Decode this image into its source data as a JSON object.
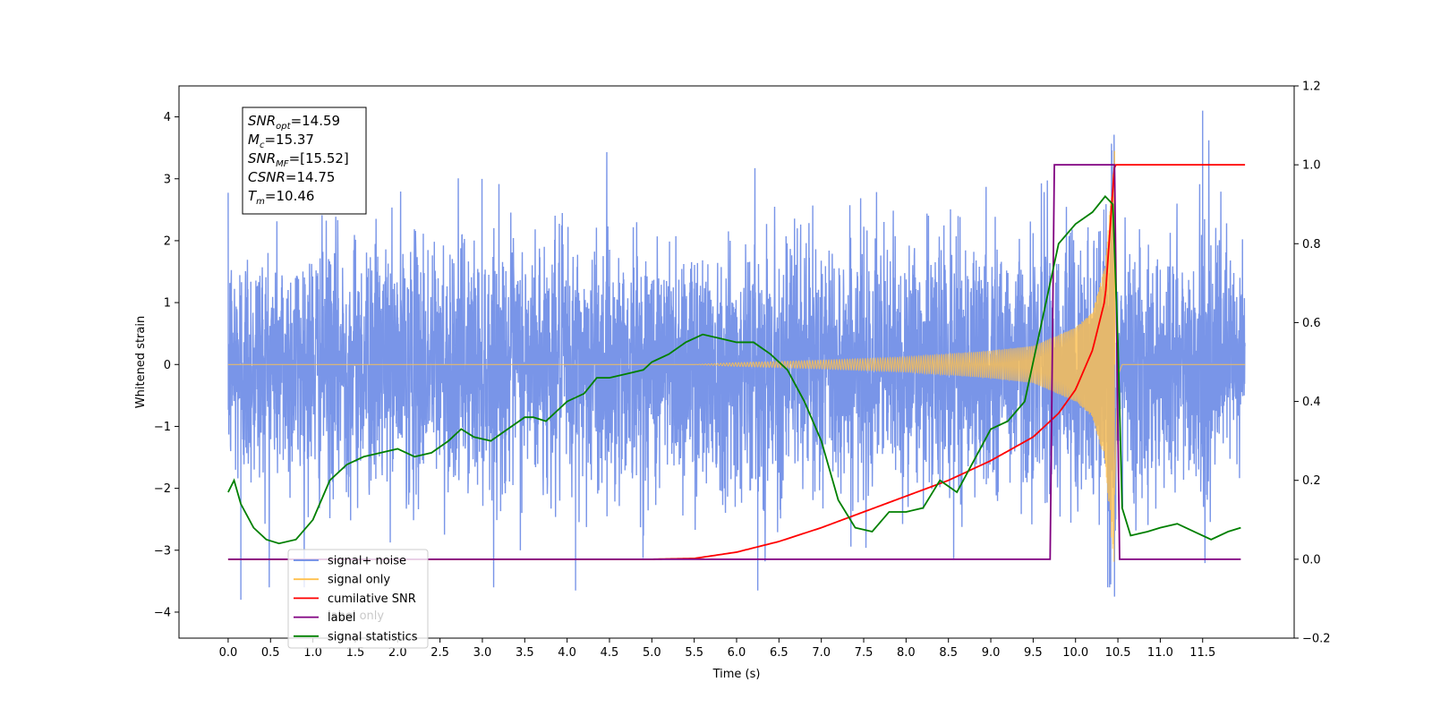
{
  "chart_data": {
    "type": "line",
    "xlabel": "Time (s)",
    "ylabel": "Whitened strain",
    "xlim": [
      -0.58,
      12.58
    ],
    "ylim": [
      -4.42,
      4.5
    ],
    "y2lim": [
      -0.2,
      1.2
    ],
    "x_ticks": [
      0.0,
      0.5,
      1.0,
      1.5,
      2.0,
      2.5,
      3.0,
      3.5,
      4.0,
      4.5,
      5.0,
      5.5,
      6.0,
      6.5,
      7.0,
      7.5,
      8.0,
      8.5,
      9.0,
      9.5,
      10.0,
      10.5,
      11.0,
      11.5
    ],
    "x_tick_labels": [
      "0.0",
      "0.5",
      "1.0",
      "1.5",
      "2.0",
      "2.5",
      "3.0",
      "3.5",
      "4.0",
      "4.5",
      "5.0",
      "5.5",
      "6.0",
      "6.5",
      "7.0",
      "7.5",
      "8.0",
      "8.5",
      "9.0",
      "9.5",
      "10.0",
      "10.5",
      "11.0",
      "11.5"
    ],
    "y_ticks": [
      -4,
      -3,
      -2,
      -1,
      0,
      1,
      2,
      3,
      4
    ],
    "y_tick_labels": [
      "−4",
      "−3",
      "−2",
      "−1",
      "0",
      "1",
      "2",
      "3",
      "4"
    ],
    "y2_ticks": [
      -0.2,
      0.0,
      0.2,
      0.4,
      0.6,
      0.8,
      1.0,
      1.2
    ],
    "y2_tick_labels": [
      "−0.2",
      "0.0",
      "0.2",
      "0.4",
      "0.6",
      "0.8",
      "1.0",
      "1.2"
    ],
    "legend_position": "lower-left",
    "legend": [
      {
        "label": "signal+ noise",
        "color": "#6a8ae6"
      },
      {
        "label": "signal only",
        "color": "#ffc04d"
      },
      {
        "label": "cumilative SNR",
        "color": "#ff0000"
      },
      {
        "label": "label",
        "color": "#800080"
      },
      {
        "label": "signal statistics",
        "color": "#008000"
      }
    ],
    "legend_hidden_entries": [
      "label only"
    ],
    "annotation_box": {
      "position": "top-left",
      "lines": [
        {
          "var": "SNR",
          "sub": "opt",
          "value": "=14.59"
        },
        {
          "var": "M",
          "sub": "c",
          "value": "=15.37"
        },
        {
          "var": "SNR",
          "sub": "MF",
          "value": "=[15.52]"
        },
        {
          "var": "CSNR",
          "sub": "",
          "value": "=14.75"
        },
        {
          "var": "T",
          "sub": "m",
          "value": "=10.46"
        }
      ]
    },
    "series": [
      {
        "name": "signal+ noise",
        "axis": "left",
        "color": "#6a8ae6",
        "x_range": [
          0.0,
          12.0
        ],
        "noise_sigma": 1.0,
        "visible_extremes": [
          {
            "x": 0.15,
            "y": -3.8
          },
          {
            "x": 4.1,
            "y": -3.65
          },
          {
            "x": 6.25,
            "y": -3.65
          },
          {
            "x": 10.46,
            "y": -3.75
          },
          {
            "x": 11.5,
            "y": 4.1
          }
        ]
      },
      {
        "name": "signal only",
        "axis": "left",
        "color": "#ffc04d",
        "x_range": [
          0.0,
          12.0
        ],
        "merger_time": 10.46,
        "peak_amplitude": 3.45,
        "amplitude_envelope": {
          "x": [
            0.0,
            5.5,
            6.0,
            7.0,
            8.0,
            9.0,
            9.5,
            10.0,
            10.2,
            10.35,
            10.46,
            10.5,
            10.55,
            12.0
          ],
          "y": [
            0.0,
            0.0,
            0.03,
            0.07,
            0.12,
            0.22,
            0.3,
            0.6,
            0.85,
            1.6,
            3.45,
            0.3,
            0.0,
            0.0
          ]
        }
      },
      {
        "name": "cumilative SNR",
        "axis": "right",
        "color": "#ff0000",
        "x": [
          0.0,
          5.0,
          5.5,
          6.0,
          6.5,
          7.0,
          7.5,
          8.0,
          8.5,
          9.0,
          9.5,
          9.8,
          10.0,
          10.2,
          10.35,
          10.46,
          10.5,
          12.0
        ],
        "y": [
          0.0,
          0.0,
          0.002,
          0.018,
          0.045,
          0.08,
          0.12,
          0.16,
          0.2,
          0.25,
          0.31,
          0.37,
          0.43,
          0.53,
          0.66,
          1.0,
          1.0,
          1.0
        ]
      },
      {
        "name": "label",
        "axis": "right",
        "color": "#800080",
        "x": [
          0.0,
          9.7,
          9.75,
          10.46,
          10.52,
          11.95
        ],
        "y": [
          0.0,
          0.0,
          1.0,
          1.0,
          0.0,
          0.0
        ]
      },
      {
        "name": "signal statistics",
        "axis": "right",
        "color": "#008000",
        "x": [
          0.0,
          0.07,
          0.15,
          0.3,
          0.45,
          0.6,
          0.8,
          1.0,
          1.2,
          1.4,
          1.6,
          1.8,
          2.0,
          2.2,
          2.4,
          2.6,
          2.75,
          2.9,
          3.1,
          3.3,
          3.5,
          3.6,
          3.75,
          4.0,
          4.2,
          4.35,
          4.5,
          4.7,
          4.9,
          5.0,
          5.2,
          5.4,
          5.6,
          5.8,
          6.0,
          6.2,
          6.4,
          6.6,
          6.8,
          7.0,
          7.2,
          7.4,
          7.6,
          7.8,
          8.0,
          8.2,
          8.4,
          8.6,
          8.8,
          9.0,
          9.2,
          9.4,
          9.6,
          9.8,
          10.0,
          10.2,
          10.35,
          10.44,
          10.5,
          10.55,
          10.65,
          10.85,
          11.0,
          11.2,
          11.4,
          11.6,
          11.8,
          11.95
        ],
        "y": [
          0.17,
          0.2,
          0.14,
          0.08,
          0.05,
          0.04,
          0.05,
          0.1,
          0.2,
          0.24,
          0.26,
          0.27,
          0.28,
          0.26,
          0.27,
          0.3,
          0.33,
          0.31,
          0.3,
          0.33,
          0.36,
          0.36,
          0.35,
          0.4,
          0.42,
          0.46,
          0.46,
          0.47,
          0.48,
          0.5,
          0.52,
          0.55,
          0.57,
          0.56,
          0.55,
          0.55,
          0.52,
          0.48,
          0.4,
          0.3,
          0.15,
          0.08,
          0.07,
          0.12,
          0.12,
          0.13,
          0.2,
          0.17,
          0.25,
          0.33,
          0.35,
          0.4,
          0.6,
          0.8,
          0.85,
          0.88,
          0.92,
          0.9,
          0.55,
          0.13,
          0.06,
          0.07,
          0.08,
          0.09,
          0.07,
          0.05,
          0.07,
          0.08
        ]
      }
    ]
  }
}
